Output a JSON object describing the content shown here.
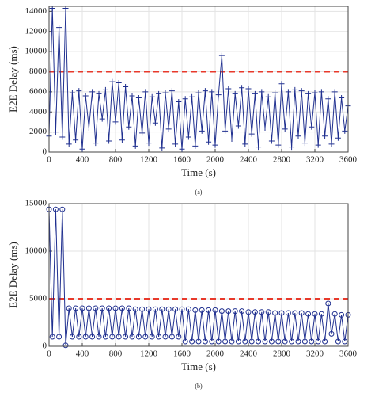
{
  "chart_data": [
    {
      "type": "line",
      "caption": "(a)",
      "xlabel": "Time (s)",
      "ylabel": "E2E Delay (ms)",
      "marker": "plus",
      "xlim": [
        0,
        3600
      ],
      "xticks": [
        0,
        400,
        800,
        1200,
        1600,
        2000,
        2400,
        2800,
        3200,
        3600
      ],
      "ylim": [
        0,
        14500
      ],
      "yticks": [
        0,
        2000,
        4000,
        6000,
        8000,
        10000,
        12000,
        14000
      ],
      "grid": true,
      "reference_line": {
        "value": 8000,
        "color": "#e8392b"
      },
      "series": [
        {
          "color": "#1f2f8f",
          "x": [
            0,
            40,
            80,
            120,
            160,
            200,
            240,
            280,
            320,
            360,
            400,
            440,
            480,
            520,
            560,
            600,
            640,
            680,
            720,
            760,
            800,
            840,
            880,
            920,
            960,
            1000,
            1040,
            1080,
            1120,
            1160,
            1200,
            1240,
            1280,
            1320,
            1360,
            1400,
            1440,
            1480,
            1520,
            1560,
            1600,
            1640,
            1680,
            1720,
            1760,
            1800,
            1840,
            1880,
            1920,
            1960,
            2000,
            2040,
            2080,
            2120,
            2160,
            2200,
            2240,
            2280,
            2320,
            2360,
            2400,
            2440,
            2480,
            2520,
            2560,
            2600,
            2640,
            2680,
            2720,
            2760,
            2800,
            2840,
            2880,
            2920,
            2960,
            3000,
            3040,
            3080,
            3120,
            3160,
            3200,
            3240,
            3280,
            3320,
            3360,
            3400,
            3440,
            3480,
            3520,
            3560,
            3600
          ],
          "values": [
            1600,
            14300,
            2000,
            12400,
            1500,
            14300,
            800,
            5900,
            1200,
            6100,
            300,
            5600,
            2400,
            6000,
            900,
            5800,
            3300,
            6200,
            1100,
            7000,
            3000,
            6900,
            1200,
            6500,
            2500,
            5600,
            600,
            5400,
            1900,
            6000,
            900,
            5500,
            2900,
            5800,
            400,
            5900,
            2300,
            6100,
            800,
            5000,
            300,
            5300,
            1500,
            5500,
            600,
            5900,
            2100,
            6100,
            1000,
            6000,
            700,
            5700,
            9600,
            2100,
            6300,
            1300,
            5800,
            2600,
            6400,
            800,
            6300,
            1800,
            5800,
            500,
            6000,
            2400,
            5500,
            1100,
            5900,
            700,
            6800,
            2300,
            6000,
            500,
            6200,
            1600,
            6100,
            900,
            5800,
            2500,
            5900,
            700,
            6000,
            1600,
            5300,
            800,
            6000,
            1400,
            5400,
            2100,
            4600
          ]
        }
      ]
    },
    {
      "type": "line",
      "caption": "(b)",
      "xlabel": "Time (s)",
      "ylabel": "E2E Delay (ms)",
      "marker": "circle",
      "xlim": [
        0,
        3600
      ],
      "xticks": [
        0,
        400,
        800,
        1200,
        1600,
        2000,
        2400,
        2800,
        3200,
        3600
      ],
      "ylim": [
        0,
        15000
      ],
      "yticks": [
        0,
        5000,
        10000,
        15000
      ],
      "grid": true,
      "reference_line": {
        "value": 5000,
        "color": "#e8392b"
      },
      "series": [
        {
          "color": "#1f2f8f",
          "x": [
            0,
            40,
            80,
            120,
            160,
            200,
            240,
            280,
            320,
            360,
            400,
            440,
            480,
            520,
            560,
            600,
            640,
            680,
            720,
            760,
            800,
            840,
            880,
            920,
            960,
            1000,
            1040,
            1080,
            1120,
            1160,
            1200,
            1240,
            1280,
            1320,
            1360,
            1400,
            1440,
            1480,
            1520,
            1560,
            1600,
            1640,
            1680,
            1720,
            1760,
            1800,
            1840,
            1880,
            1920,
            1960,
            2000,
            2040,
            2080,
            2120,
            2160,
            2200,
            2240,
            2280,
            2320,
            2360,
            2400,
            2440,
            2480,
            2520,
            2560,
            2600,
            2640,
            2680,
            2720,
            2760,
            2800,
            2840,
            2880,
            2920,
            2960,
            3000,
            3040,
            3080,
            3120,
            3160,
            3200,
            3240,
            3280,
            3320,
            3360,
            3400,
            3440,
            3480,
            3520,
            3560,
            3600
          ],
          "values": [
            14400,
            1000,
            14400,
            1000,
            14400,
            100,
            4000,
            1000,
            4000,
            1000,
            4000,
            1000,
            4000,
            1000,
            4000,
            1000,
            4000,
            1000,
            4000,
            1000,
            4000,
            1000,
            4000,
            1000,
            4000,
            1000,
            3900,
            1000,
            3900,
            1000,
            3900,
            1000,
            3900,
            1000,
            3900,
            1000,
            3900,
            1000,
            3900,
            1000,
            3900,
            500,
            3900,
            500,
            3800,
            500,
            3800,
            500,
            3800,
            500,
            3800,
            500,
            3700,
            500,
            3700,
            500,
            3700,
            500,
            3700,
            500,
            3600,
            500,
            3600,
            500,
            3600,
            500,
            3600,
            500,
            3500,
            500,
            3500,
            500,
            3500,
            500,
            3500,
            500,
            3500,
            500,
            3400,
            500,
            3400,
            500,
            3400,
            500,
            4500,
            1300,
            3400,
            500,
            3300,
            500,
            3300
          ]
        }
      ]
    }
  ]
}
